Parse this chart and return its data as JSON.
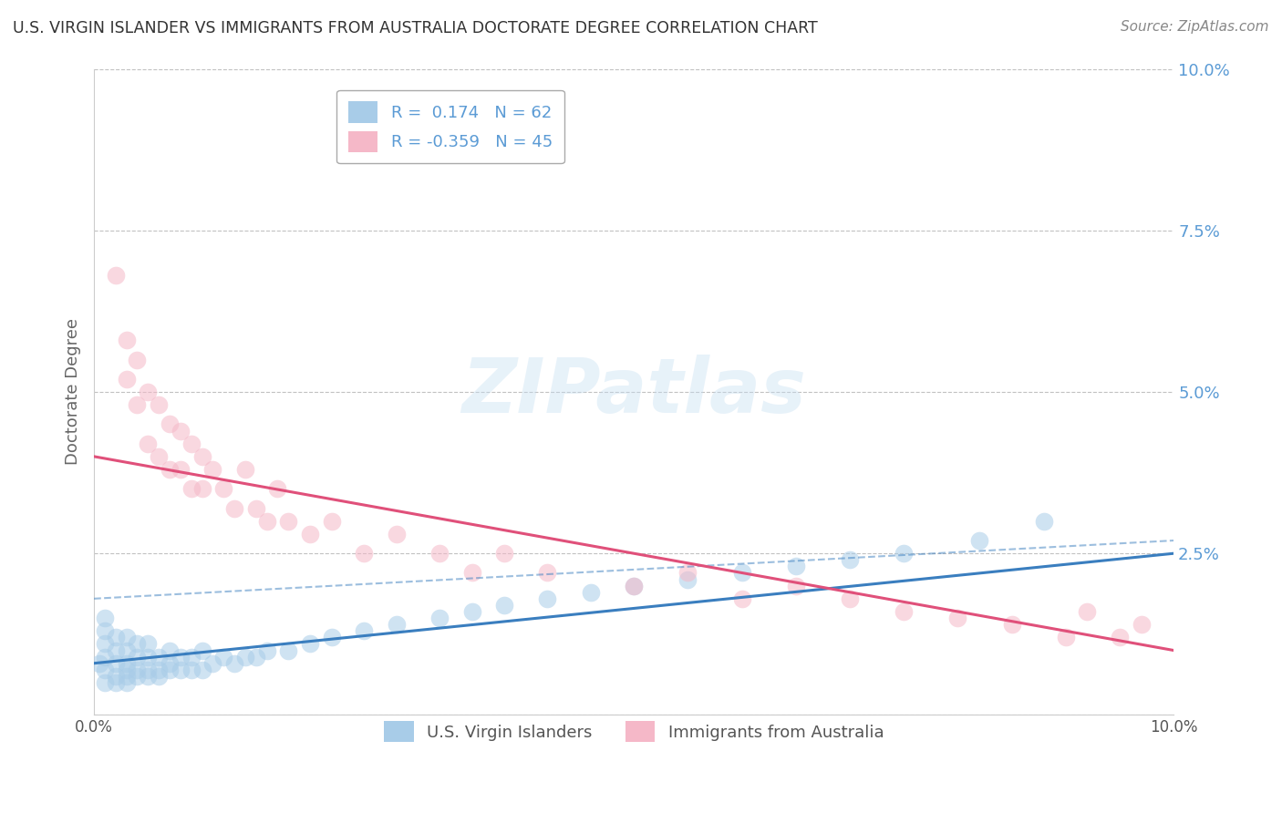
{
  "title": "U.S. VIRGIN ISLANDER VS IMMIGRANTS FROM AUSTRALIA DOCTORATE DEGREE CORRELATION CHART",
  "source": "Source: ZipAtlas.com",
  "ylabel": "Doctorate Degree",
  "ytick_labels": [
    "",
    "2.5%",
    "5.0%",
    "7.5%",
    "10.0%"
  ],
  "ytick_vals": [
    0.0,
    0.025,
    0.05,
    0.075,
    0.1
  ],
  "xlim": [
    0.0,
    0.1
  ],
  "ylim": [
    0.0,
    0.1
  ],
  "legend_R1": "0.174",
  "legend_N1": "62",
  "legend_R2": "-0.359",
  "legend_N2": "45",
  "color_blue": "#a8cce8",
  "color_pink": "#f5b8c8",
  "line_blue": "#3a7ebf",
  "line_pink": "#e0507a",
  "tick_color": "#5b9bd5",
  "blue_scatter_x": [
    0.0005,
    0.001,
    0.001,
    0.001,
    0.001,
    0.001,
    0.001,
    0.002,
    0.002,
    0.002,
    0.002,
    0.002,
    0.003,
    0.003,
    0.003,
    0.003,
    0.003,
    0.003,
    0.004,
    0.004,
    0.004,
    0.004,
    0.005,
    0.005,
    0.005,
    0.005,
    0.006,
    0.006,
    0.006,
    0.007,
    0.007,
    0.007,
    0.008,
    0.008,
    0.009,
    0.009,
    0.01,
    0.01,
    0.011,
    0.012,
    0.013,
    0.014,
    0.015,
    0.016,
    0.018,
    0.02,
    0.022,
    0.025,
    0.028,
    0.032,
    0.035,
    0.038,
    0.042,
    0.046,
    0.05,
    0.055,
    0.06,
    0.065,
    0.07,
    0.075,
    0.082,
    0.088
  ],
  "blue_scatter_y": [
    0.008,
    0.005,
    0.007,
    0.009,
    0.011,
    0.013,
    0.015,
    0.005,
    0.006,
    0.008,
    0.01,
    0.012,
    0.005,
    0.006,
    0.007,
    0.008,
    0.01,
    0.012,
    0.006,
    0.007,
    0.009,
    0.011,
    0.006,
    0.007,
    0.009,
    0.011,
    0.006,
    0.007,
    0.009,
    0.007,
    0.008,
    0.01,
    0.007,
    0.009,
    0.007,
    0.009,
    0.007,
    0.01,
    0.008,
    0.009,
    0.008,
    0.009,
    0.009,
    0.01,
    0.01,
    0.011,
    0.012,
    0.013,
    0.014,
    0.015,
    0.016,
    0.017,
    0.018,
    0.019,
    0.02,
    0.021,
    0.022,
    0.023,
    0.024,
    0.025,
    0.027,
    0.03
  ],
  "pink_scatter_x": [
    0.002,
    0.003,
    0.003,
    0.004,
    0.004,
    0.005,
    0.005,
    0.006,
    0.006,
    0.007,
    0.007,
    0.008,
    0.008,
    0.009,
    0.009,
    0.01,
    0.01,
    0.011,
    0.012,
    0.013,
    0.014,
    0.015,
    0.016,
    0.017,
    0.018,
    0.02,
    0.022,
    0.025,
    0.028,
    0.032,
    0.035,
    0.038,
    0.042,
    0.05,
    0.055,
    0.06,
    0.065,
    0.07,
    0.075,
    0.08,
    0.085,
    0.09,
    0.092,
    0.095,
    0.097
  ],
  "pink_scatter_y": [
    0.068,
    0.058,
    0.052,
    0.048,
    0.055,
    0.042,
    0.05,
    0.04,
    0.048,
    0.038,
    0.045,
    0.038,
    0.044,
    0.035,
    0.042,
    0.035,
    0.04,
    0.038,
    0.035,
    0.032,
    0.038,
    0.032,
    0.03,
    0.035,
    0.03,
    0.028,
    0.03,
    0.025,
    0.028,
    0.025,
    0.022,
    0.025,
    0.022,
    0.02,
    0.022,
    0.018,
    0.02,
    0.018,
    0.016,
    0.015,
    0.014,
    0.012,
    0.016,
    0.012,
    0.014
  ]
}
